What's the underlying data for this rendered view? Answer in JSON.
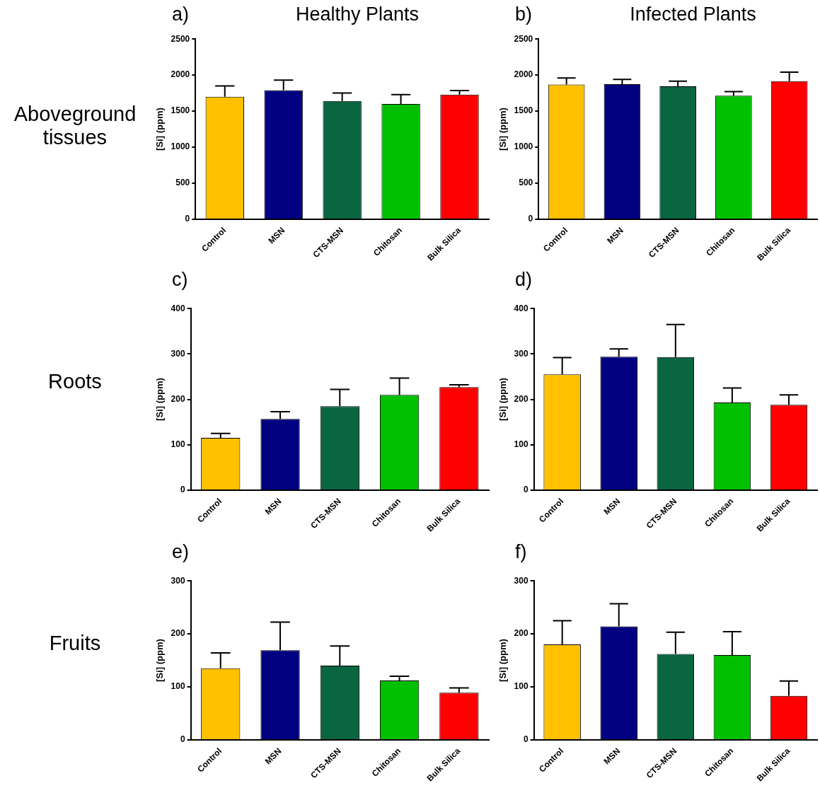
{
  "chart_data": [
    {
      "type": "bar",
      "title": "a)",
      "subtitle": "Healthy Plants",
      "annotations": [
        "Aboveground tissues"
      ],
      "ylabel": "[Si] (ppm)",
      "categories": [
        "Control",
        "MSN",
        "CTS-MSN",
        "Chitosan",
        "Bulk Silica"
      ],
      "values": [
        1700,
        1790,
        1640,
        1600,
        1730
      ],
      "colors": [
        "#ffc000",
        "#000080",
        "#0a6640",
        "#00c000",
        "#ff0000"
      ],
      "errors": [
        [
          1700,
          1850
        ],
        [
          1790,
          1930
        ],
        [
          1640,
          1750
        ],
        [
          1600,
          1730
        ],
        [
          1730,
          1785
        ]
      ],
      "ylim": [
        0,
        2500
      ],
      "yticks": [
        0,
        500,
        1000,
        1500,
        2000,
        2500
      ],
      "grid": false,
      "legend": false
    },
    {
      "type": "bar",
      "title": "b)",
      "subtitle": "Infected Plants",
      "ylabel": "[Si] (ppm)",
      "categories": [
        "Control",
        "MSN",
        "CTS-MSN",
        "Chitosan",
        "Bulk Silica"
      ],
      "values": [
        1870,
        1875,
        1845,
        1715,
        1915
      ],
      "colors": [
        "#ffc000",
        "#000080",
        "#0a6640",
        "#00c000",
        "#ff0000"
      ],
      "errors": [
        [
          1870,
          1960
        ],
        [
          1875,
          1940
        ],
        [
          1845,
          1915
        ],
        [
          1715,
          1770
        ],
        [
          1915,
          2040
        ]
      ],
      "ylim": [
        0,
        2500
      ],
      "yticks": [
        0,
        500,
        1000,
        1500,
        2000,
        2500
      ],
      "grid": false,
      "legend": false
    },
    {
      "type": "bar",
      "title": "c)",
      "annotations": [
        "Roots"
      ],
      "ylabel": "[Si] (ppm)",
      "categories": [
        "Control",
        "MSN",
        "CTS-MSN",
        "Chitosan",
        "Bulk Silica"
      ],
      "values": [
        115,
        157,
        185,
        210,
        227
      ],
      "colors": [
        "#ffc000",
        "#000080",
        "#0a6640",
        "#00c000",
        "#ff0000"
      ],
      "errors": [
        [
          115,
          125
        ],
        [
          157,
          173
        ],
        [
          185,
          222
        ],
        [
          210,
          247
        ],
        [
          227,
          232
        ]
      ],
      "ylim": [
        0,
        400
      ],
      "yticks": [
        0,
        100,
        200,
        300,
        400
      ],
      "grid": false,
      "legend": false
    },
    {
      "type": "bar",
      "title": "d)",
      "ylabel": "[Si] (ppm)",
      "categories": [
        "Control",
        "MSN",
        "CTS-MSN",
        "Chitosan",
        "Bulk Silica"
      ],
      "values": [
        255,
        294,
        293,
        193,
        188
      ],
      "colors": [
        "#ffc000",
        "#000080",
        "#0a6640",
        "#00c000",
        "#ff0000"
      ],
      "errors": [
        [
          255,
          292
        ],
        [
          294,
          311
        ],
        [
          293,
          365
        ],
        [
          193,
          225
        ],
        [
          188,
          210
        ]
      ],
      "ylim": [
        0,
        400
      ],
      "yticks": [
        0,
        100,
        200,
        300,
        400
      ],
      "grid": false,
      "legend": false
    },
    {
      "type": "bar",
      "title": "e)",
      "annotations": [
        "Fruits"
      ],
      "ylabel": "[Si] (ppm)",
      "categories": [
        "Control",
        "MSN",
        "CTS-MSN",
        "Chitosan",
        "Bulk Silica"
      ],
      "values": [
        135,
        169,
        140,
        112,
        89
      ],
      "colors": [
        "#ffc000",
        "#000080",
        "#0a6640",
        "#00c000",
        "#ff0000"
      ],
      "errors": [
        [
          135,
          164
        ],
        [
          169,
          222
        ],
        [
          140,
          177
        ],
        [
          112,
          120
        ],
        [
          89,
          98
        ]
      ],
      "ylim": [
        0,
        300
      ],
      "yticks": [
        0,
        100,
        200,
        300
      ],
      "grid": false,
      "legend": false
    },
    {
      "type": "bar",
      "title": "f)",
      "ylabel": "[Si] (ppm)",
      "categories": [
        "Control",
        "MSN",
        "CTS-MSN",
        "Chitosan",
        "Bulk Silica"
      ],
      "values": [
        180,
        214,
        162,
        160,
        83
      ],
      "colors": [
        "#ffc000",
        "#000080",
        "#0a6640",
        "#00c000",
        "#ff0000"
      ],
      "errors": [
        [
          180,
          225
        ],
        [
          214,
          257
        ],
        [
          162,
          203
        ],
        [
          160,
          204
        ],
        [
          83,
          111
        ]
      ],
      "ylim": [
        0,
        300
      ],
      "yticks": [
        0,
        100,
        200,
        300
      ],
      "grid": false,
      "legend": false
    }
  ]
}
